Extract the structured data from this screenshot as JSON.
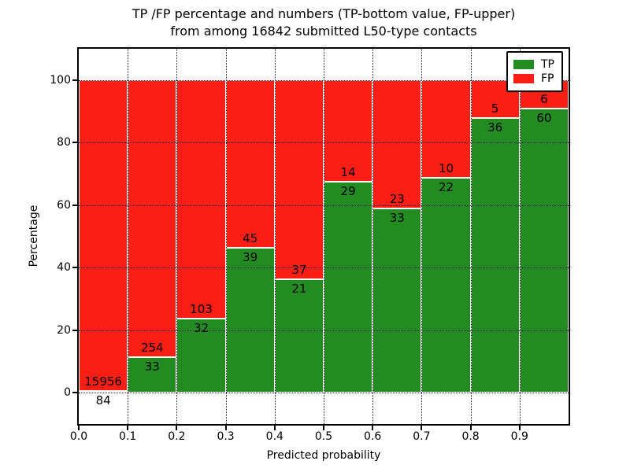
{
  "figure": {
    "title_line1": "TP /FP percentage and numbers (TP-bottom value, FP-upper)",
    "title_line2": "from among 16842 submitted L50-type contacts"
  },
  "chart_data": {
    "type": "bar",
    "stacked": true,
    "normalized": "each bin scaled to 100%",
    "title": "TP /FP percentage and numbers (TP-bottom value, FP-upper) from among 16842 submitted L50-type contacts",
    "xlabel": "Predicted probability",
    "ylabel": "Percentage",
    "xlim": [
      0.0,
      1.0
    ],
    "ylim": [
      -10,
      110
    ],
    "bin_width": 0.1,
    "bin_starts": [
      0.0,
      0.1,
      0.2,
      0.3,
      0.4,
      0.5,
      0.6,
      0.7,
      0.8,
      0.9
    ],
    "xtick_labels": [
      "0.0",
      "0.1",
      "0.2",
      "0.3",
      "0.4",
      "0.5",
      "0.6",
      "0.7",
      "0.8",
      "0.9"
    ],
    "ytick_values": [
      0,
      20,
      40,
      60,
      80,
      100
    ],
    "grid": "dotted, drawn above bars",
    "legend_position": "upper right",
    "total_contacts": 16842,
    "series": [
      {
        "name": "TP",
        "color": "#228b22",
        "position": "bottom",
        "counts": [
          84,
          33,
          32,
          39,
          21,
          29,
          33,
          22,
          36,
          60
        ]
      },
      {
        "name": "FP",
        "color": "#fb1e14",
        "position": "top",
        "counts": [
          15956,
          254,
          103,
          45,
          37,
          14,
          23,
          10,
          5,
          6
        ]
      }
    ],
    "tp_percent_per_bin": [
      0.52,
      11.5,
      23.7,
      46.4,
      36.2,
      67.4,
      58.9,
      68.8,
      87.8,
      90.9
    ],
    "annotation_rule": "FP count printed just above TP/FP boundary, TP count just below"
  }
}
